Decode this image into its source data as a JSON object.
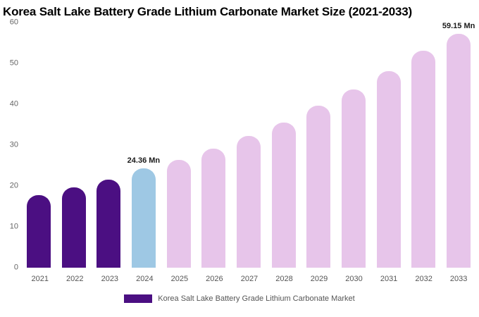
{
  "title": "Korea Salt Lake Battery Grade Lithium Carbonate Market Size (2021-2033)",
  "legend": {
    "label": "Korea Salt Lake Battery Grade Lithium Carbonate Market",
    "color": "#4B0F82"
  },
  "chart_data": {
    "type": "bar",
    "title": "Korea Salt Lake Battery Grade Lithium Carbonate Market Size (2021-2033)",
    "categories": [
      "2021",
      "2022",
      "2023",
      "2024",
      "2025",
      "2026",
      "2027",
      "2028",
      "2029",
      "2030",
      "2031",
      "2032",
      "2033"
    ],
    "values": [
      17.8,
      19.7,
      21.6,
      24.36,
      26.3,
      29.1,
      32.2,
      35.5,
      39.6,
      43.6,
      48.1,
      53.1,
      59.15
    ],
    "bar_colors": [
      "#4B0F82",
      "#4B0F82",
      "#4B0F82",
      "#9EC8E4",
      "#E7C5EA",
      "#E7C5EA",
      "#E7C5EA",
      "#E7C5EA",
      "#E7C5EA",
      "#E7C5EA",
      "#E7C5EA",
      "#E7C5EA",
      "#E7C5EA"
    ],
    "annotations": [
      {
        "index": 3,
        "text": "24.36 Mn"
      },
      {
        "index": 12,
        "text": "59.15 Mn"
      }
    ],
    "xlabel": "",
    "ylabel": "",
    "ylim": [
      0,
      60
    ],
    "yticks": [
      0,
      10,
      20,
      30,
      40,
      50,
      60
    ],
    "grid": false,
    "legend_position": "bottom",
    "unit": "Mn"
  }
}
